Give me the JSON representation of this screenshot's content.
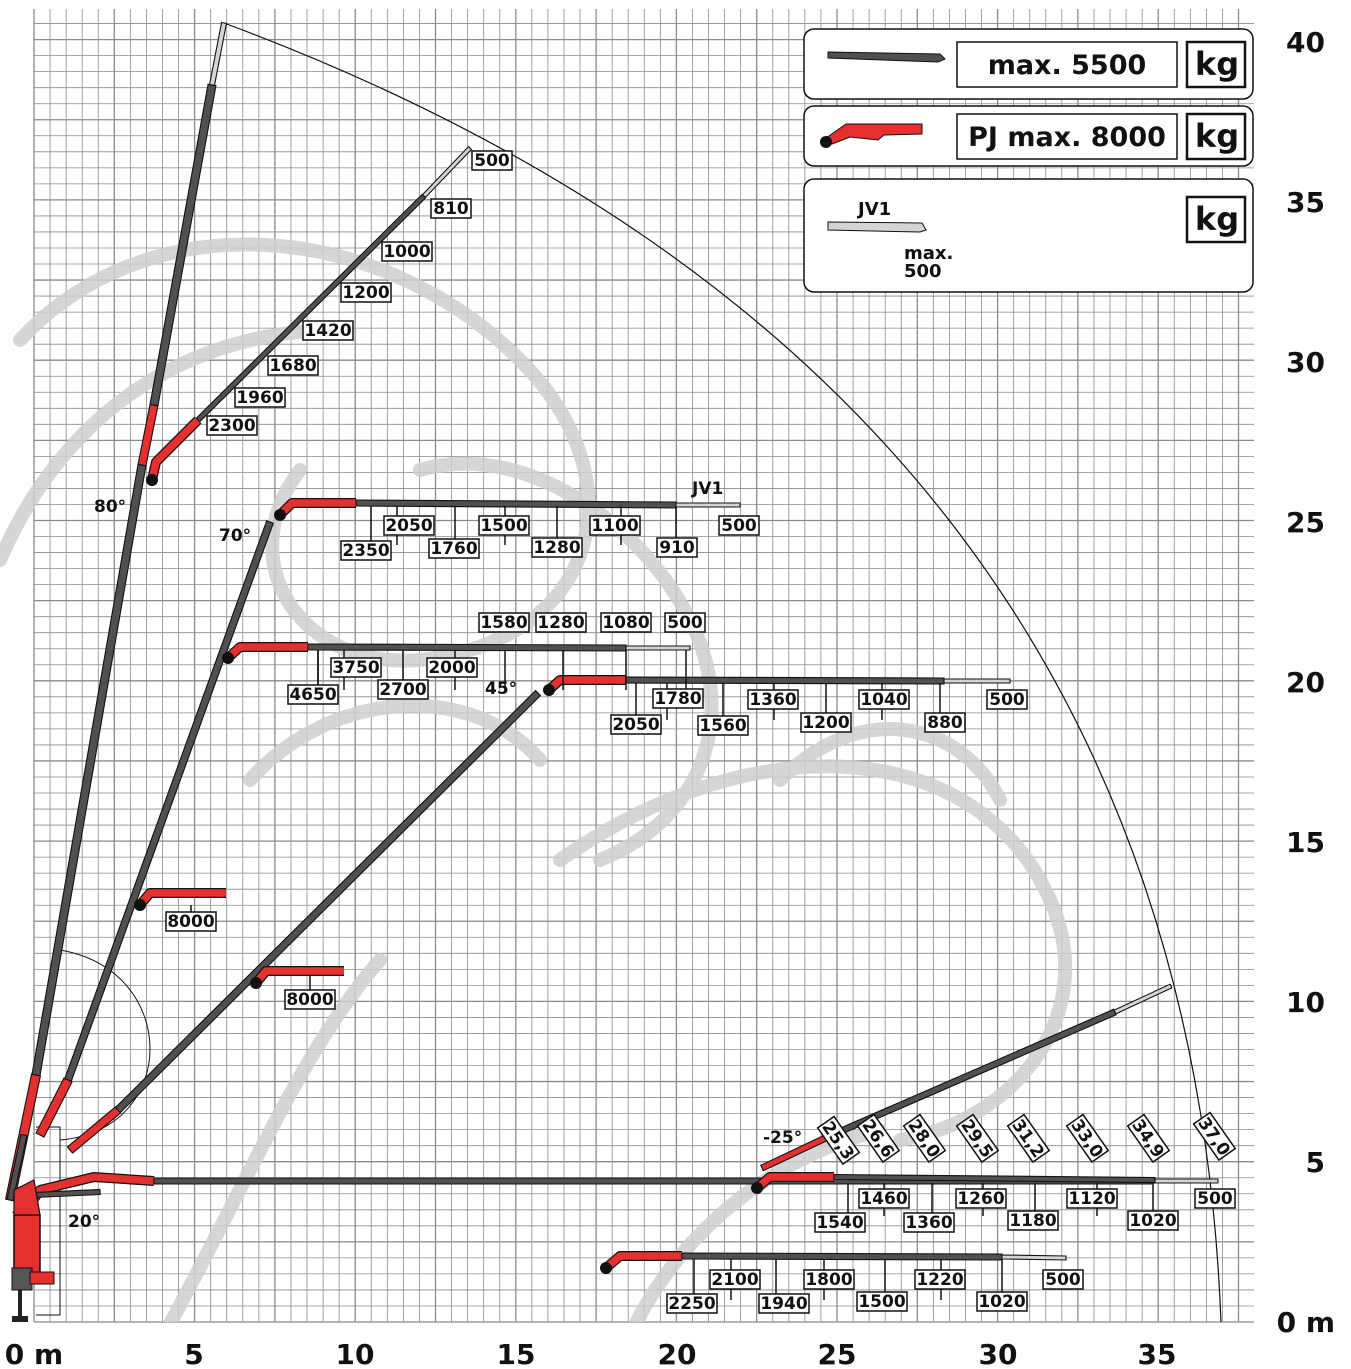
{
  "axes": {
    "x_ticks": [
      "0 m",
      "5",
      "10",
      "15",
      "20",
      "25",
      "30",
      "35"
    ],
    "y_ticks": [
      "0 m",
      "5",
      "10",
      "15",
      "20",
      "25",
      "30",
      "35",
      "40"
    ]
  },
  "legend": {
    "main_boom": {
      "label": "max. 5500",
      "unit": "kg"
    },
    "pj": {
      "label": "PJ max. 8000",
      "unit": "kg"
    },
    "jib": {
      "name": "JV1",
      "max_label": "max.",
      "max_value": "500",
      "unit": "kg"
    }
  },
  "angles": {
    "a80": "80°",
    "a70": "70°",
    "a45": "45°",
    "a20": "20°",
    "an25": "-25°"
  },
  "jib_name": "JV1",
  "capacities": {
    "b80": [
      "500",
      "810",
      "1000",
      "1200",
      "1420",
      "1680",
      "1960",
      "2300"
    ],
    "b70": [
      "2350",
      "2050",
      "1760",
      "1500",
      "1280",
      "1100",
      "910",
      "500"
    ],
    "b45a_top": [
      "1580",
      "1280",
      "1080",
      "500"
    ],
    "b45a_bottom": [
      "4650",
      "3750",
      "2700",
      "2000"
    ],
    "b45b": [
      "2050",
      "1780",
      "1560",
      "1360",
      "1200",
      "1040",
      "880",
      "500"
    ],
    "short70": "8000",
    "short45": "8000",
    "b20": [
      "1540",
      "1460",
      "1360",
      "1260",
      "1180",
      "1120",
      "1020",
      "500"
    ],
    "b0": [
      "2250",
      "2100",
      "1940",
      "1800",
      "1500",
      "1220",
      "1020",
      "500"
    ],
    "slew": [
      "25,3",
      "26,6",
      "28,0",
      "29,5",
      "31,2",
      "33,0",
      "34,9",
      "37,0"
    ]
  }
}
